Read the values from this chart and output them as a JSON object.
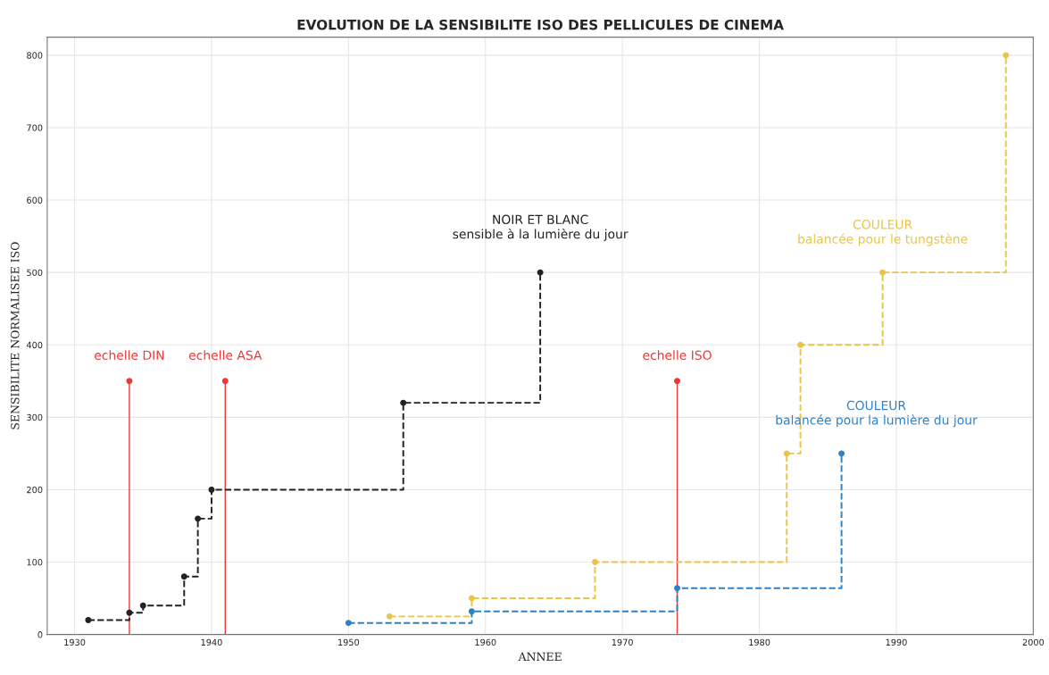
{
  "chart_data": {
    "type": "step",
    "title": "EVOLUTION DE LA SENSIBILITE ISO DES PELLICULES DE CINEMA",
    "xlabel": "ANNEE",
    "ylabel": "SENSIBILITE NORMALISEE ISO",
    "series": [
      {
        "color": "#222222",
        "x": [
          1931,
          1934,
          1935,
          1938,
          1939,
          1940,
          1954,
          1964
        ],
        "values": [
          20,
          30,
          40,
          80,
          160,
          200,
          320,
          500
        ]
      },
      {
        "color": "#e8c44a",
        "x": [
          1953,
          1959,
          1968,
          1982,
          1983,
          1989,
          1998
        ],
        "values": [
          25,
          50,
          100,
          250,
          400,
          500,
          800
        ]
      },
      {
        "color": "#2f80c4",
        "x": [
          1950,
          1959,
          1974,
          1986
        ],
        "values": [
          16,
          32,
          64,
          250
        ]
      },
      {
        "type": "lollipop",
        "color": "#e83a3a",
        "x": [
          1934,
          1941,
          1974
        ],
        "values": [
          350,
          350,
          350
        ]
      }
    ],
    "annotations": [
      {
        "text": "NOIR ET BLANC\nsensible à la lumière du jour",
        "x": 1964,
        "y": 500
      },
      {
        "text": "COULEUR\nbalancée pour le tungstène",
        "x": 1989,
        "y": 500
      },
      {
        "text": "COULEUR\nbalancée pour la lumière du jour",
        "x": 1986,
        "y": 250
      },
      {
        "text": "echelle DIN",
        "x": 1934,
        "y": 350
      },
      {
        "text": "echelle ASA",
        "x": 1941,
        "y": 350
      },
      {
        "text": "echelle ISO",
        "x": 1974,
        "y": 350
      }
    ],
    "xlim": [
      1928,
      2000
    ],
    "xticks": [
      1930,
      1940,
      1950,
      1960,
      1970,
      1980,
      1990,
      2000
    ],
    "ylim": [
      0,
      825
    ],
    "yticks": [
      0,
      100,
      200,
      300,
      400,
      500,
      600,
      700,
      800
    ],
    "grid": true,
    "marker": "circle",
    "line_style": "dashed",
    "legend": false
  }
}
